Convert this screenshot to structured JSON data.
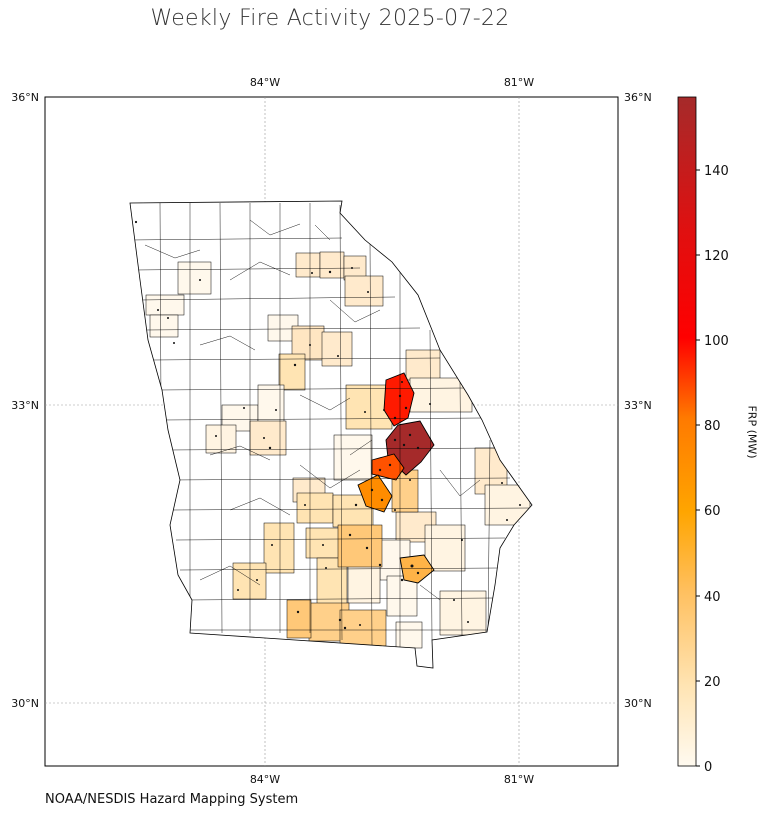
{
  "title": "Weekly Fire Activity 2025-07-22",
  "credit": "NOAA/NESDIS Hazard Mapping System",
  "colorbar": {
    "label": "FRP (MW)",
    "ticks": [
      "0",
      "20",
      "40",
      "60",
      "80",
      "100",
      "120",
      "140"
    ],
    "colors": [
      "#fffaf0",
      "#ffe4b3",
      "#ffc060",
      "#ffa500",
      "#ff7a00",
      "#ff2a00",
      "#ff0000",
      "#a52a2a"
    ]
  },
  "axes": {
    "lat_labels": [
      "36°N",
      "33°N",
      "30°N"
    ],
    "lon_labels": [
      "84°W",
      "81°W"
    ]
  },
  "chart_data": {
    "type": "choropleth",
    "region": "Georgia counties",
    "lon_range": [
      -86.6,
      -79.85
    ],
    "lat_range": [
      29.2,
      36
    ],
    "value_range": [
      0,
      157
    ],
    "colormap": [
      "white",
      "#ffe4b3",
      "orange",
      "red",
      "darkred"
    ],
    "hotspots": [
      {
        "area": "east-central Georgia",
        "value": 157
      },
      {
        "area": "east-central Georgia (north)",
        "value": 100
      },
      {
        "area": "east-central Georgia (south)",
        "value": 85
      },
      {
        "area": "central Georgia",
        "value": 65
      },
      {
        "area": "south-central Georgia",
        "value": 40
      },
      {
        "area": "south Georgia",
        "value": 28
      }
    ]
  }
}
